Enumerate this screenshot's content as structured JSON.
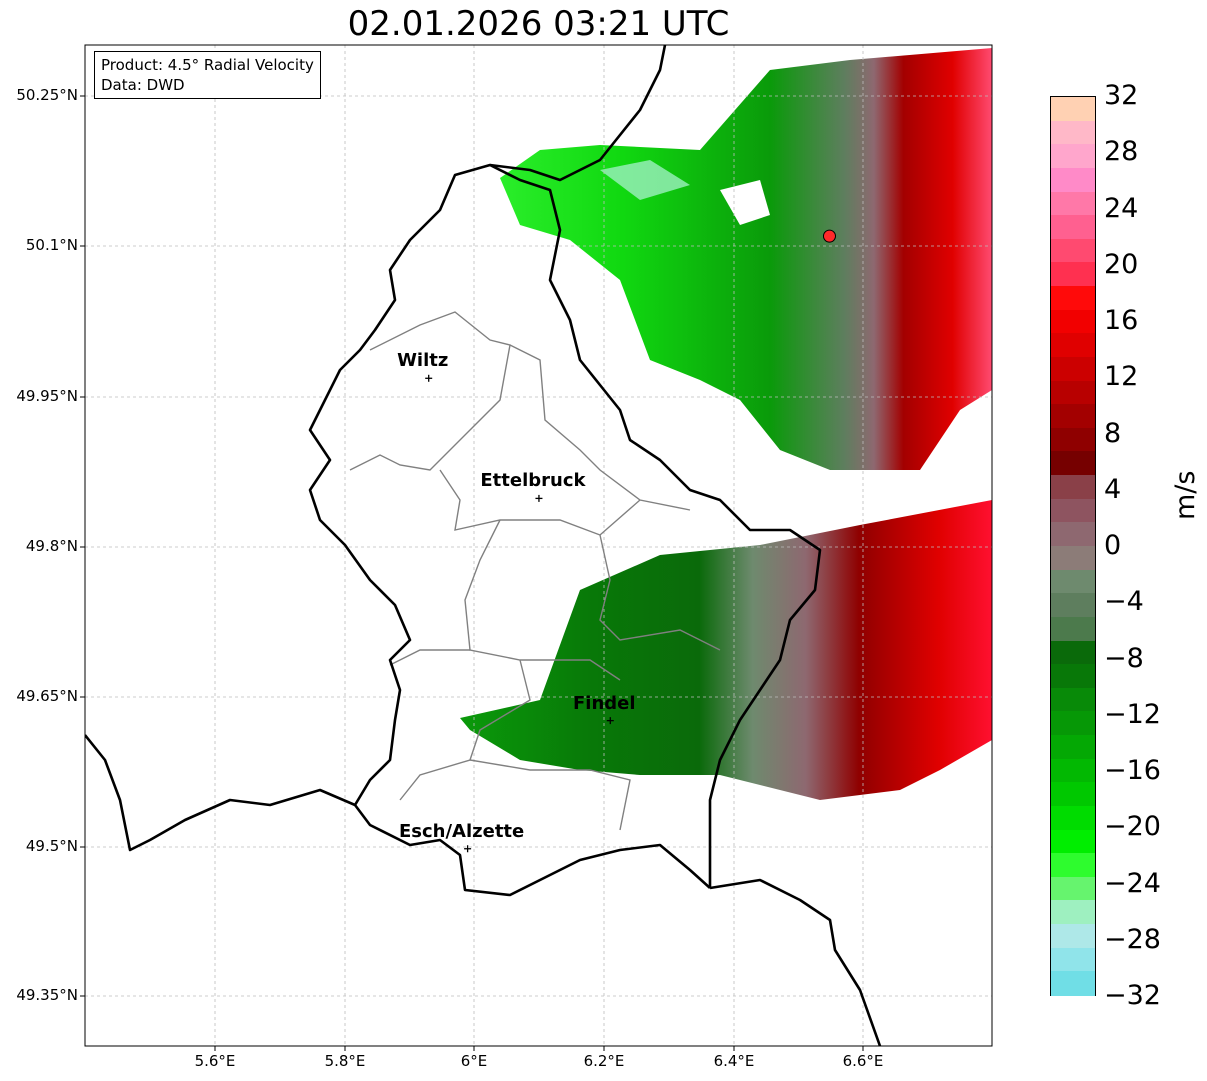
{
  "title": "02.01.2026 03:21 UTC",
  "info": {
    "product": "Product: 4.5° Radial Velocity",
    "source": "Data: DWD"
  },
  "lat_ticks": [
    "50.25°N",
    "50.1°N",
    "49.95°N",
    "49.8°N",
    "49.65°N",
    "49.5°N",
    "49.35°N"
  ],
  "lon_ticks": [
    "5.6°E",
    "5.8°E",
    "6°E",
    "6.2°E",
    "6.4°E",
    "6.6°E"
  ],
  "cities": [
    {
      "name": "Wiltz",
      "lon": 5.93,
      "lat": 49.968
    },
    {
      "name": "Ettelbruck",
      "lon": 6.1,
      "lat": 49.848
    },
    {
      "name": "Findel",
      "lon": 6.21,
      "lat": 49.626
    },
    {
      "name": "Esch/Alzette",
      "lon": 5.99,
      "lat": 49.498
    }
  ],
  "radar_site": {
    "lon": 6.548,
    "lat": 50.11,
    "color": "#ff2a2a"
  },
  "colorbar": {
    "unit": "m/s",
    "ticks": [
      "32",
      "28",
      "24",
      "20",
      "16",
      "12",
      "8",
      "4",
      "0",
      "−4",
      "−8",
      "−12",
      "−16",
      "−20",
      "−24",
      "−28",
      "−32"
    ],
    "colors_top_to_bottom": [
      "#ffd1b3",
      "#ffb8c8",
      "#ffa6cc",
      "#ff8ac8",
      "#ff78a8",
      "#ff6090",
      "#ff4a70",
      "#ff3050",
      "#ff0a0a",
      "#f20000",
      "#e00000",
      "#cc0000",
      "#b80000",
      "#a30000",
      "#8f0000",
      "#760000",
      "#8a4048",
      "#8e5460",
      "#8e6870",
      "#8c7c78",
      "#6e8a6e",
      "#5e7e5e",
      "#4c7a4c",
      "#0a6a0a",
      "#087808",
      "#088a08",
      "#069806",
      "#04a804",
      "#02b802",
      "#00c800",
      "#00dc00",
      "#00ee00",
      "#2efc2e",
      "#66f46e",
      "#9ef0c0",
      "#aee8e8",
      "#90e4ea",
      "#70dee6"
    ]
  },
  "colors": {
    "border_country": "#000000",
    "border_canton": "#808080",
    "grid": "#bdbdbd"
  }
}
